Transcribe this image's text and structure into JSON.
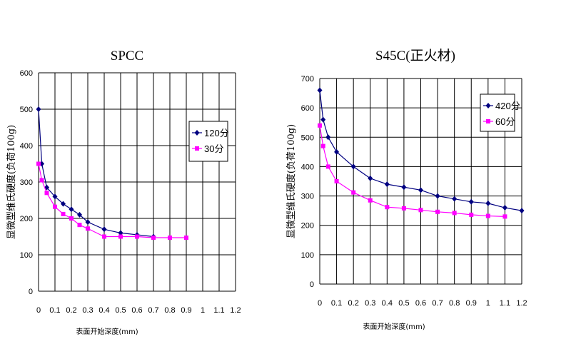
{
  "chart_data": [
    {
      "type": "line",
      "title": "SPCC",
      "xlabel": "表面开始深度(mm)",
      "ylabel": "显微型维氏硬度(负荷100g)",
      "xlim": [
        0,
        1.2
      ],
      "ylim": [
        0,
        600
      ],
      "x_ticks": [
        "0",
        "0.1",
        "0.2",
        "0.3",
        "0.4",
        "0.5",
        "0.6",
        "0.7",
        "0.8",
        "0.9",
        "1",
        "1.1",
        "1.2"
      ],
      "y_ticks": [
        "0",
        "100",
        "200",
        "300",
        "400",
        "500",
        "600"
      ],
      "grid": true,
      "legend_position": "right",
      "series": [
        {
          "name": "120分",
          "color": "#000080",
          "marker": "diamond",
          "x": [
            0.0,
            0.02,
            0.05,
            0.1,
            0.15,
            0.2,
            0.25,
            0.3,
            0.4,
            0.5,
            0.6,
            0.7
          ],
          "y": [
            500,
            350,
            285,
            260,
            240,
            225,
            210,
            190,
            170,
            160,
            155,
            150
          ]
        },
        {
          "name": "30分",
          "color": "#ff00ff",
          "marker": "square",
          "x": [
            0.0,
            0.02,
            0.05,
            0.1,
            0.15,
            0.2,
            0.25,
            0.3,
            0.4,
            0.5,
            0.6,
            0.7,
            0.8,
            0.9
          ],
          "y": [
            350,
            305,
            270,
            232,
            212,
            200,
            182,
            172,
            150,
            150,
            150,
            147,
            147,
            147
          ]
        }
      ]
    },
    {
      "type": "line",
      "title": "S45C(正火材)",
      "xlabel": "表面开始深度(mm)",
      "ylabel": "显微型维氏硬度(负荷100g)",
      "xlim": [
        0,
        1.2
      ],
      "ylim": [
        0,
        700
      ],
      "x_ticks": [
        "0",
        "0.1",
        "0.2",
        "0.3",
        "0.4",
        "0.5",
        "0.6",
        "0.7",
        "0.8",
        "0.9",
        "1",
        "1.1",
        "1.2"
      ],
      "y_ticks": [
        "0",
        "100",
        "200",
        "300",
        "400",
        "500",
        "600",
        "700"
      ],
      "grid": true,
      "legend_position": "top-right",
      "series": [
        {
          "name": "420分",
          "color": "#000080",
          "marker": "diamond",
          "x": [
            0.0,
            0.02,
            0.05,
            0.1,
            0.2,
            0.3,
            0.4,
            0.5,
            0.6,
            0.7,
            0.8,
            0.9,
            1.0,
            1.1,
            1.2
          ],
          "y": [
            660,
            560,
            500,
            450,
            400,
            360,
            340,
            330,
            320,
            300,
            290,
            280,
            275,
            260,
            250
          ]
        },
        {
          "name": "60分",
          "color": "#ff00ff",
          "marker": "square",
          "x": [
            0.0,
            0.02,
            0.05,
            0.1,
            0.2,
            0.3,
            0.4,
            0.5,
            0.6,
            0.7,
            0.8,
            0.9,
            1.0,
            1.1
          ],
          "y": [
            540,
            470,
            400,
            350,
            312,
            285,
            262,
            258,
            252,
            246,
            242,
            236,
            232,
            230
          ]
        }
      ]
    }
  ]
}
